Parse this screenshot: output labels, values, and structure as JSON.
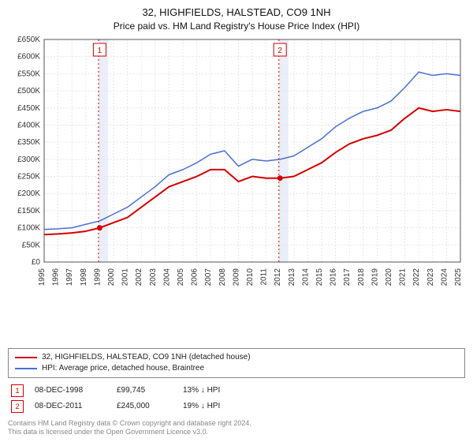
{
  "title_line1": "32, HIGHFIELDS, HALSTEAD, CO9 1NH",
  "title_line2": "Price paid vs. HM Land Registry's House Price Index (HPI)",
  "chart": {
    "type": "line",
    "plot_bg": "#ffffff",
    "grid_color": "#e6e6e6",
    "grid_dash": "2,2",
    "axis_color": "#555555",
    "tick_fontsize": 10,
    "x_years": [
      1995,
      1996,
      1997,
      1998,
      1999,
      2000,
      2001,
      2002,
      2003,
      2004,
      2005,
      2006,
      2007,
      2008,
      2009,
      2010,
      2011,
      2012,
      2013,
      2014,
      2015,
      2016,
      2017,
      2018,
      2019,
      2020,
      2021,
      2022,
      2023,
      2024,
      2025
    ],
    "y_min": 0,
    "y_max": 650000,
    "y_step": 50000,
    "y_tick_labels": [
      "£0",
      "£50K",
      "£100K",
      "£150K",
      "£200K",
      "£250K",
      "£300K",
      "£350K",
      "£400K",
      "£450K",
      "£500K",
      "£550K",
      "£600K",
      "£650K"
    ],
    "series": [
      {
        "id": "address",
        "label": "32, HIGHFIELDS, HALSTEAD, CO9 1NH (detached house)",
        "color": "#d40000",
        "width": 2,
        "points": [
          [
            1995,
            80000
          ],
          [
            1996,
            82000
          ],
          [
            1997,
            85000
          ],
          [
            1998,
            90000
          ],
          [
            1999,
            99745
          ],
          [
            2000,
            115000
          ],
          [
            2001,
            130000
          ],
          [
            2002,
            160000
          ],
          [
            2003,
            190000
          ],
          [
            2004,
            220000
          ],
          [
            2005,
            235000
          ],
          [
            2006,
            250000
          ],
          [
            2007,
            270000
          ],
          [
            2008,
            270000
          ],
          [
            2009,
            235000
          ],
          [
            2010,
            250000
          ],
          [
            2011,
            245000
          ],
          [
            2012,
            245000
          ],
          [
            2013,
            250000
          ],
          [
            2014,
            270000
          ],
          [
            2015,
            290000
          ],
          [
            2016,
            320000
          ],
          [
            2017,
            345000
          ],
          [
            2018,
            360000
          ],
          [
            2019,
            370000
          ],
          [
            2020,
            385000
          ],
          [
            2021,
            420000
          ],
          [
            2022,
            450000
          ],
          [
            2023,
            440000
          ],
          [
            2024,
            445000
          ],
          [
            2025,
            440000
          ]
        ]
      },
      {
        "id": "hpi",
        "label": "HPI: Average price, detached house, Braintree",
        "color": "#4a6fd6",
        "width": 1.5,
        "points": [
          [
            1995,
            95000
          ],
          [
            1996,
            97000
          ],
          [
            1997,
            100000
          ],
          [
            1998,
            110000
          ],
          [
            1999,
            120000
          ],
          [
            2000,
            140000
          ],
          [
            2001,
            160000
          ],
          [
            2002,
            190000
          ],
          [
            2003,
            220000
          ],
          [
            2004,
            255000
          ],
          [
            2005,
            270000
          ],
          [
            2006,
            290000
          ],
          [
            2007,
            315000
          ],
          [
            2008,
            325000
          ],
          [
            2009,
            280000
          ],
          [
            2010,
            300000
          ],
          [
            2011,
            295000
          ],
          [
            2012,
            300000
          ],
          [
            2013,
            310000
          ],
          [
            2014,
            335000
          ],
          [
            2015,
            360000
          ],
          [
            2016,
            395000
          ],
          [
            2017,
            420000
          ],
          [
            2018,
            440000
          ],
          [
            2019,
            450000
          ],
          [
            2020,
            470000
          ],
          [
            2021,
            510000
          ],
          [
            2022,
            555000
          ],
          [
            2023,
            545000
          ],
          [
            2024,
            550000
          ],
          [
            2025,
            545000
          ]
        ]
      }
    ],
    "sale_markers": [
      {
        "n": "1",
        "year": 1999,
        "value": 99745,
        "marker_color": "#d40000",
        "band_color": "#e9eef9",
        "band_start": 1998.92,
        "band_end": 1999.6,
        "label_y": 620000
      },
      {
        "n": "2",
        "year": 2012,
        "value": 245000,
        "marker_color": "#d40000",
        "band_color": "#e9eef9",
        "band_start": 2011.92,
        "band_end": 2012.6,
        "label_y": 620000
      }
    ]
  },
  "legend": {
    "items": [
      {
        "color": "#d40000",
        "label": "32, HIGHFIELDS, HALSTEAD, CO9 1NH (detached house)"
      },
      {
        "color": "#4a6fd6",
        "label": "HPI: Average price, detached house, Braintree"
      }
    ]
  },
  "sales": [
    {
      "n": "1",
      "color": "#d40000",
      "date": "08-DEC-1998",
      "price": "£99,745",
      "diff": "13% ↓ HPI"
    },
    {
      "n": "2",
      "color": "#d40000",
      "date": "08-DEC-2011",
      "price": "£245,000",
      "diff": "19% ↓ HPI"
    }
  ],
  "footnote_l1": "Contains HM Land Registry data © Crown copyright and database right 2024.",
  "footnote_l2": "This data is licensed under the Open Government Licence v3.0."
}
